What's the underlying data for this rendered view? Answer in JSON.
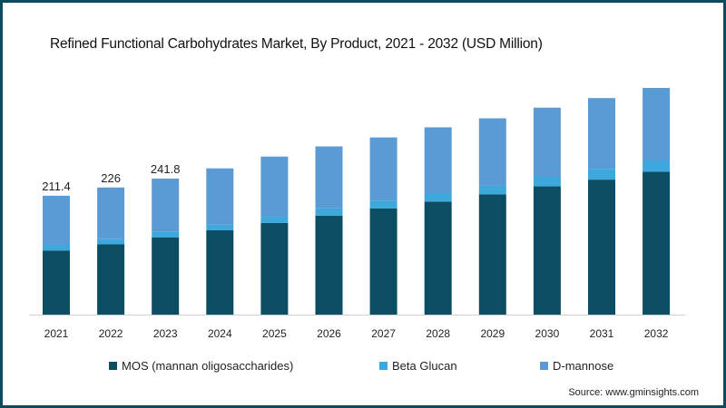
{
  "chart_data": {
    "type": "bar",
    "stacked": true,
    "title": "Refined Functional Carbohydrates Market, By Product, 2021 - 2032 (USD Million)",
    "xlabel": "",
    "ylabel": "",
    "ylim": [
      0,
      420
    ],
    "grid": false,
    "legend_position": "bottom",
    "categories": [
      "2021",
      "2022",
      "2023",
      "2024",
      "2025",
      "2026",
      "2027",
      "2028",
      "2029",
      "2030",
      "2031",
      "2032"
    ],
    "series": [
      {
        "name": "MOS (mannan oligosaccharides)",
        "color": "#0b4d63",
        "values": [
          114,
          125,
          137,
          150,
          163,
          176,
          189,
          201,
          214,
          228,
          240,
          254
        ]
      },
      {
        "name": "Beta Glucan",
        "color": "#3ea8dd",
        "values": [
          11,
          10,
          10,
          10,
          11,
          13,
          13,
          15,
          15,
          17,
          19,
          20
        ]
      },
      {
        "name": "D-mannose",
        "color": "#5b9bd5",
        "values": [
          86.4,
          91,
          94.8,
          100,
          107,
          110,
          113,
          117,
          120,
          123,
          126,
          129
        ]
      }
    ],
    "data_labels": [
      {
        "category": "2021",
        "text": "211.4"
      },
      {
        "category": "2022",
        "text": "226"
      },
      {
        "category": "2023",
        "text": "241.8"
      }
    ],
    "source": "Source: www.gminsights.com"
  }
}
